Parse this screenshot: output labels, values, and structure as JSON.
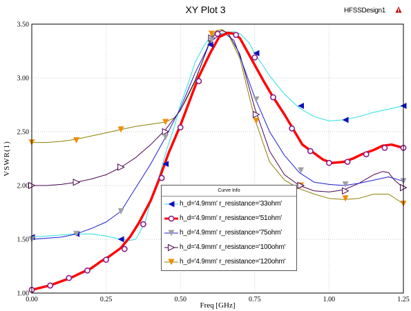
{
  "window": {
    "title": "XY Plot 3",
    "design_name": "HFSSDesign1",
    "design_icon": "warning-triangle-icon",
    "legend_title": "Curve Info"
  },
  "chart_data": {
    "type": "line",
    "title": "XY Plot 3",
    "xlabel": "Freq [GHz]",
    "ylabel": "VSWR(1)",
    "xlim": [
      0.0,
      1.25
    ],
    "ylim": [
      1.0,
      3.5
    ],
    "xticks": [
      "0.00",
      "0.25",
      "0.50",
      "0.75",
      "1.00",
      "1.25"
    ],
    "yticks": [
      "1.00",
      "1.50",
      "2.00",
      "2.50",
      "3.00",
      "3.50"
    ],
    "grid": true,
    "legend_placement": "bottom-center",
    "series": [
      {
        "name": "h_d='4.9mm' r_resistance='33ohm'",
        "color": "#26e0e0",
        "line_width": 1,
        "marker": "triangle-left",
        "marker_color": "#1010c0",
        "x": [
          0.0,
          0.05,
          0.1,
          0.15,
          0.2,
          0.25,
          0.3,
          0.33,
          0.35,
          0.38,
          0.4,
          0.43,
          0.45,
          0.48,
          0.5,
          0.53,
          0.55,
          0.58,
          0.6,
          0.63,
          0.65,
          0.68,
          0.7,
          0.73,
          0.75,
          0.8,
          0.85,
          0.9,
          0.95,
          1.0,
          1.05,
          1.1,
          1.15,
          1.2,
          1.25
        ],
        "y": [
          1.52,
          1.53,
          1.54,
          1.55,
          1.55,
          1.53,
          1.5,
          1.49,
          1.5,
          1.65,
          1.85,
          2.1,
          2.3,
          2.55,
          2.75,
          2.98,
          3.15,
          3.3,
          3.38,
          3.41,
          3.42,
          3.43,
          3.41,
          3.33,
          3.23,
          3.02,
          2.85,
          2.72,
          2.64,
          2.6,
          2.61,
          2.64,
          2.68,
          2.71,
          2.74
        ],
        "marker_x": [
          0.0,
          0.15,
          0.3,
          0.45,
          0.6,
          0.755,
          0.905,
          1.055,
          1.25
        ],
        "marker_y": [
          1.52,
          1.55,
          1.5,
          2.2,
          3.31,
          3.23,
          2.74,
          2.61,
          2.74
        ]
      },
      {
        "name": "h_d='4.9mm' r_resistance='51ohm'",
        "color": "#ff0000",
        "line_width": 3.5,
        "marker": "circle",
        "marker_color": "#8b1a8b",
        "x": [
          0.0,
          0.03,
          0.06,
          0.1,
          0.13,
          0.16,
          0.2,
          0.23,
          0.26,
          0.3,
          0.33,
          0.36,
          0.4,
          0.43,
          0.46,
          0.5,
          0.53,
          0.56,
          0.6,
          0.63,
          0.66,
          0.68,
          0.7,
          0.72,
          0.75,
          0.78,
          0.81,
          0.85,
          0.88,
          0.91,
          0.95,
          0.98,
          1.01,
          1.05,
          1.08,
          1.11,
          1.15,
          1.18,
          1.21,
          1.25
        ],
        "y": [
          1.03,
          1.05,
          1.07,
          1.11,
          1.14,
          1.18,
          1.23,
          1.29,
          1.34,
          1.42,
          1.52,
          1.65,
          1.86,
          2.07,
          2.3,
          2.56,
          2.78,
          3.0,
          3.23,
          3.38,
          3.42,
          3.41,
          3.37,
          3.27,
          3.12,
          2.97,
          2.83,
          2.66,
          2.52,
          2.38,
          2.3,
          2.24,
          2.21,
          2.22,
          2.25,
          2.29,
          2.33,
          2.37,
          2.38,
          2.35
        ],
        "marker_x": [
          0.0,
          0.062,
          0.125,
          0.187,
          0.25,
          0.312,
          0.375,
          0.437,
          0.5,
          0.562,
          0.625,
          0.687,
          0.75,
          0.812,
          0.875,
          0.937,
          1.0,
          1.062,
          1.125,
          1.187,
          1.25
        ],
        "marker_y": [
          1.03,
          1.07,
          1.14,
          1.21,
          1.31,
          1.41,
          1.64,
          2.07,
          2.54,
          2.97,
          3.41,
          3.4,
          3.19,
          2.82,
          2.53,
          2.32,
          2.21,
          2.22,
          2.29,
          2.35,
          2.35
        ]
      },
      {
        "name": "h_d='4.9mm' r_resistance='75ohm'",
        "color": "#1c1cd0",
        "line_width": 1,
        "marker": "triangle-down",
        "marker_color": "#a0a0a8",
        "x": [
          0.0,
          0.05,
          0.1,
          0.15,
          0.2,
          0.25,
          0.3,
          0.35,
          0.4,
          0.45,
          0.5,
          0.55,
          0.6,
          0.63,
          0.65,
          0.68,
          0.7,
          0.75,
          0.8,
          0.85,
          0.9,
          0.95,
          1.0,
          1.05,
          1.1,
          1.15,
          1.2,
          1.25
        ],
        "y": [
          1.5,
          1.51,
          1.52,
          1.55,
          1.6,
          1.66,
          1.76,
          1.98,
          2.2,
          2.45,
          2.72,
          3.05,
          3.33,
          3.4,
          3.41,
          3.35,
          3.2,
          2.82,
          2.5,
          2.28,
          2.12,
          2.03,
          2.01,
          2.0,
          2.02,
          2.05,
          2.08,
          2.04
        ],
        "marker_x": [
          0.0,
          0.15,
          0.3,
          0.45,
          0.605,
          0.755,
          0.905,
          1.055,
          1.25
        ],
        "marker_y": [
          1.5,
          1.55,
          1.76,
          2.45,
          3.35,
          2.8,
          2.14,
          2.01,
          2.04
        ]
      },
      {
        "name": "h_d='4.9mm' r_resistance='100ohm'",
        "color": "#4a004a",
        "line_width": 1,
        "marker": "triangle-right",
        "marker_color": "#4a004a",
        "x": [
          0.0,
          0.05,
          0.1,
          0.15,
          0.2,
          0.25,
          0.3,
          0.35,
          0.4,
          0.45,
          0.5,
          0.55,
          0.6,
          0.62,
          0.64,
          0.66,
          0.7,
          0.75,
          0.8,
          0.85,
          0.9,
          0.95,
          1.0,
          1.05,
          1.1,
          1.15,
          1.18,
          1.2,
          1.22,
          1.25
        ],
        "y": [
          2.0,
          2.0,
          2.01,
          2.03,
          2.06,
          2.1,
          2.17,
          2.26,
          2.38,
          2.52,
          2.7,
          2.98,
          3.34,
          3.42,
          3.44,
          3.42,
          3.22,
          2.72,
          2.32,
          2.1,
          2.0,
          1.95,
          1.94,
          1.96,
          2.02,
          2.1,
          2.13,
          2.12,
          2.05,
          1.98
        ],
        "marker_x": [
          0.0,
          0.15,
          0.3,
          0.45,
          0.605,
          0.755,
          0.905,
          1.055,
          1.25
        ],
        "marker_y": [
          2.0,
          2.03,
          2.17,
          2.5,
          3.37,
          2.66,
          2.0,
          1.95,
          1.98
        ]
      },
      {
        "name": "h_d='4.9mm' r_resistance='120ohm'",
        "color": "#8b8000",
        "line_width": 1,
        "marker": "triangle-down",
        "marker_color": "#f08c00",
        "x": [
          0.0,
          0.05,
          0.1,
          0.15,
          0.2,
          0.25,
          0.3,
          0.35,
          0.4,
          0.45,
          0.48,
          0.5,
          0.52,
          0.55,
          0.58,
          0.6,
          0.62,
          0.64,
          0.66,
          0.7,
          0.75,
          0.8,
          0.85,
          0.9,
          0.95,
          1.0,
          1.05,
          1.1,
          1.15,
          1.2,
          1.25
        ],
        "y": [
          2.4,
          2.4,
          2.41,
          2.43,
          2.46,
          2.49,
          2.52,
          2.55,
          2.57,
          2.59,
          2.63,
          2.7,
          2.8,
          2.97,
          3.2,
          3.36,
          3.44,
          3.45,
          3.41,
          3.18,
          2.62,
          2.22,
          2.05,
          1.97,
          1.92,
          1.88,
          1.87,
          1.88,
          1.92,
          1.92,
          1.83
        ],
        "marker_x": [
          0.0,
          0.15,
          0.3,
          0.45,
          0.605,
          0.755,
          0.905,
          1.055,
          1.25
        ],
        "marker_y": [
          2.4,
          2.42,
          2.52,
          2.59,
          3.41,
          2.6,
          2.0,
          1.88,
          1.83
        ]
      }
    ]
  }
}
